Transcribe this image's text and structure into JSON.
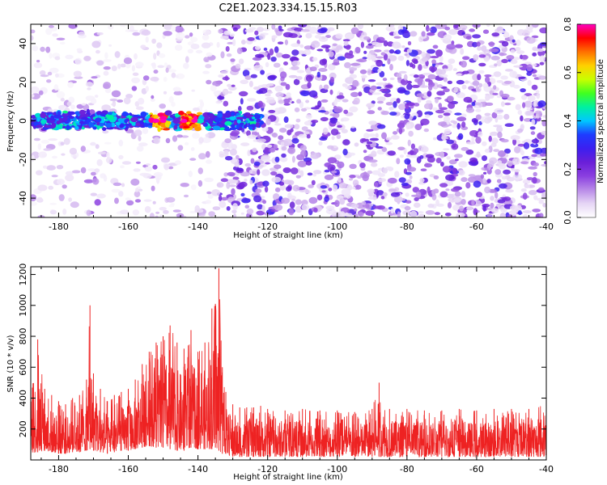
{
  "title": "C2E1.2023.334.15.15.R03",
  "chart_data": [
    {
      "type": "heatmap",
      "xlabel": "Height of straight line (km)",
      "ylabel": "Frequency (Hz)",
      "xlim": [
        -188,
        -40
      ],
      "ylim": [
        -50,
        50
      ],
      "xticks": [
        -180,
        -160,
        -140,
        -120,
        -100,
        -80,
        -60,
        -40
      ],
      "yticks": [
        -40,
        -20,
        0,
        20,
        40
      ],
      "colorbar": {
        "label": "Normalized spectral amplitude",
        "range": [
          0,
          0.8
        ],
        "ticks": [
          0.0,
          0.2,
          0.4,
          0.6,
          0.8
        ],
        "colormap": [
          "#ffffff",
          "#e6d6f5",
          "#b98ae8",
          "#8a3fe0",
          "#6a1fd8",
          "#3c1ff0",
          "#1e3cff",
          "#00c8ff",
          "#00f0a0",
          "#40ff20",
          "#c8ff00",
          "#ffd000",
          "#ff7000",
          "#ff0000",
          "#ff00c0"
        ]
      },
      "regions": [
        {
          "x": [
            -188,
            -134
          ],
          "description_values": {
            "background_amplitude": 0.05
          }
        },
        {
          "x": [
            -134,
            -40
          ],
          "description_values": {
            "background_amplitude": 0.12
          }
        }
      ],
      "signal_band": {
        "x": [
          -188,
          -122
        ],
        "frequency_center": 0,
        "frequency_halfwidth": 5,
        "peak_amplitude": 0.8,
        "peak_x": [
          -152,
          -150,
          -144,
          -141
        ]
      }
    },
    {
      "type": "line",
      "xlabel": "Height of straight line (km)",
      "ylabel": "SNR (10 * v/v)",
      "xlim": [
        -188,
        -40
      ],
      "ylim": [
        0,
        1250
      ],
      "xticks": [
        -180,
        -160,
        -140,
        -120,
        -100,
        -80,
        -60,
        -40
      ],
      "yticks": [
        200,
        400,
        600,
        800,
        1000,
        1200
      ],
      "series": [
        {
          "color": "#ee2222",
          "x": [
            -188,
            -186,
            -184,
            -182,
            -180,
            -178,
            -176,
            -174,
            -172,
            -171,
            -170,
            -168,
            -166,
            -164,
            -162,
            -160,
            -158,
            -156,
            -154,
            -152,
            -150,
            -148,
            -146,
            -144,
            -142,
            -140,
            -138,
            -136,
            -135,
            -134,
            -133,
            -132,
            -130,
            -128,
            -126,
            -124,
            -122,
            -120,
            -115,
            -110,
            -105,
            -100,
            -95,
            -90,
            -88,
            -85,
            -80,
            -75,
            -70,
            -65,
            -60,
            -55,
            -50,
            -45,
            -40
          ],
          "y_low": [
            40,
            50,
            60,
            50,
            40,
            40,
            50,
            50,
            60,
            70,
            60,
            50,
            40,
            50,
            60,
            60,
            70,
            80,
            90,
            80,
            80,
            70,
            60,
            60,
            80,
            70,
            70,
            70,
            80,
            60,
            40,
            40,
            20,
            20,
            20,
            20,
            20,
            20,
            20,
            20,
            20,
            20,
            20,
            20,
            20,
            20,
            20,
            20,
            20,
            20,
            20,
            20,
            20,
            20,
            20
          ],
          "y_high": [
            480,
            780,
            460,
            420,
            380,
            360,
            400,
            420,
            520,
            1000,
            560,
            460,
            380,
            420,
            440,
            460,
            520,
            620,
            700,
            760,
            800,
            870,
            760,
            720,
            840,
            700,
            760,
            980,
            1010,
            1240,
            600,
            440,
            360,
            340,
            340,
            340,
            350,
            330,
            320,
            330,
            320,
            320,
            310,
            330,
            500,
            330,
            330,
            320,
            320,
            330,
            320,
            330,
            330,
            330,
            380
          ]
        }
      ]
    }
  ]
}
